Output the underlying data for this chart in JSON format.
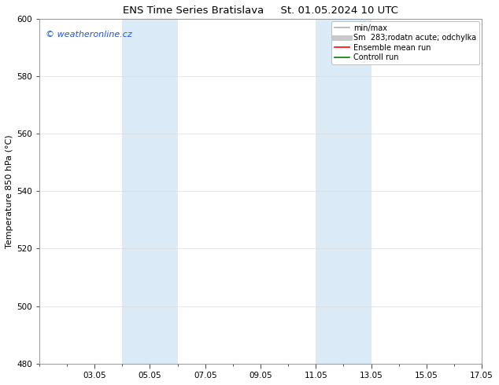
{
  "title_left": "ENS Time Series Bratislava",
  "title_right": "St. 01.05.2024 10 UTC",
  "ylabel": "Temperature 850 hPa (°C)",
  "ylim": [
    480,
    600
  ],
  "yticks": [
    480,
    500,
    520,
    540,
    560,
    580,
    600
  ],
  "xlim": [
    1,
    17
  ],
  "xtick_labels": [
    "03.05",
    "05.05",
    "07.05",
    "09.05",
    "11.05",
    "13.05",
    "15.05",
    "17.05"
  ],
  "xtick_positions": [
    3,
    5,
    7,
    9,
    11,
    13,
    15,
    17
  ],
  "shade_bands": [
    {
      "x_start": 4.0,
      "x_end": 6.0
    },
    {
      "x_start": 11.0,
      "x_end": 13.0
    }
  ],
  "shade_color": "#daeaf7",
  "legend_entries": [
    {
      "label": "min/max",
      "color": "#b0b0b0",
      "lw": 1.2
    },
    {
      "label": "283;rodatn acute; odchylka",
      "color": "#c8c8c8",
      "lw": 5
    },
    {
      "label": "Ensemble mean run",
      "color": "#ff0000",
      "lw": 1.2
    },
    {
      "label": "Controll run",
      "color": "#008000",
      "lw": 1.2
    }
  ],
  "legend_prefix": "Sm",
  "watermark_text": "© weatheronline.cz",
  "watermark_color": "#2255cc",
  "background_color": "#ffffff",
  "plot_bg_color": "#ffffff",
  "title_fontsize": 9.5,
  "tick_fontsize": 7.5,
  "ylabel_fontsize": 8,
  "legend_fontsize": 7,
  "watermark_fontsize": 8
}
